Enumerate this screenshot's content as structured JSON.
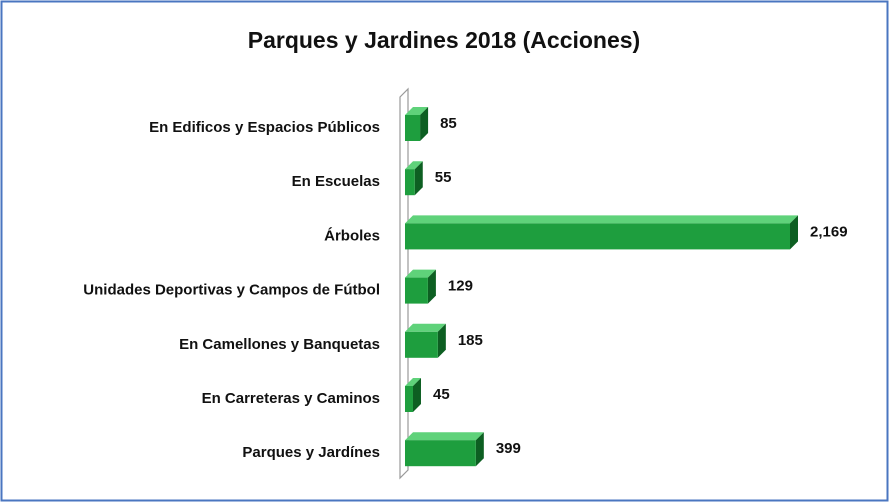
{
  "chart_data": {
    "type": "bar3d-horizontal",
    "title": "Parques y Jardines 2018 (Acciones)",
    "categories": [
      "En Edificos y Espacios Públicos",
      "En Escuelas",
      "Árboles",
      "Unidades Deportivas y Campos de Fútbol",
      "En Camellones y Banquetas",
      "En Carreteras y Caminos",
      "Parques y Jardínes"
    ],
    "values": [
      85,
      55,
      2169,
      129,
      185,
      45,
      399
    ],
    "value_labels": [
      "85",
      "55",
      "2,169",
      "129",
      "185",
      "45",
      "399"
    ],
    "color": "#1e9e3e"
  }
}
